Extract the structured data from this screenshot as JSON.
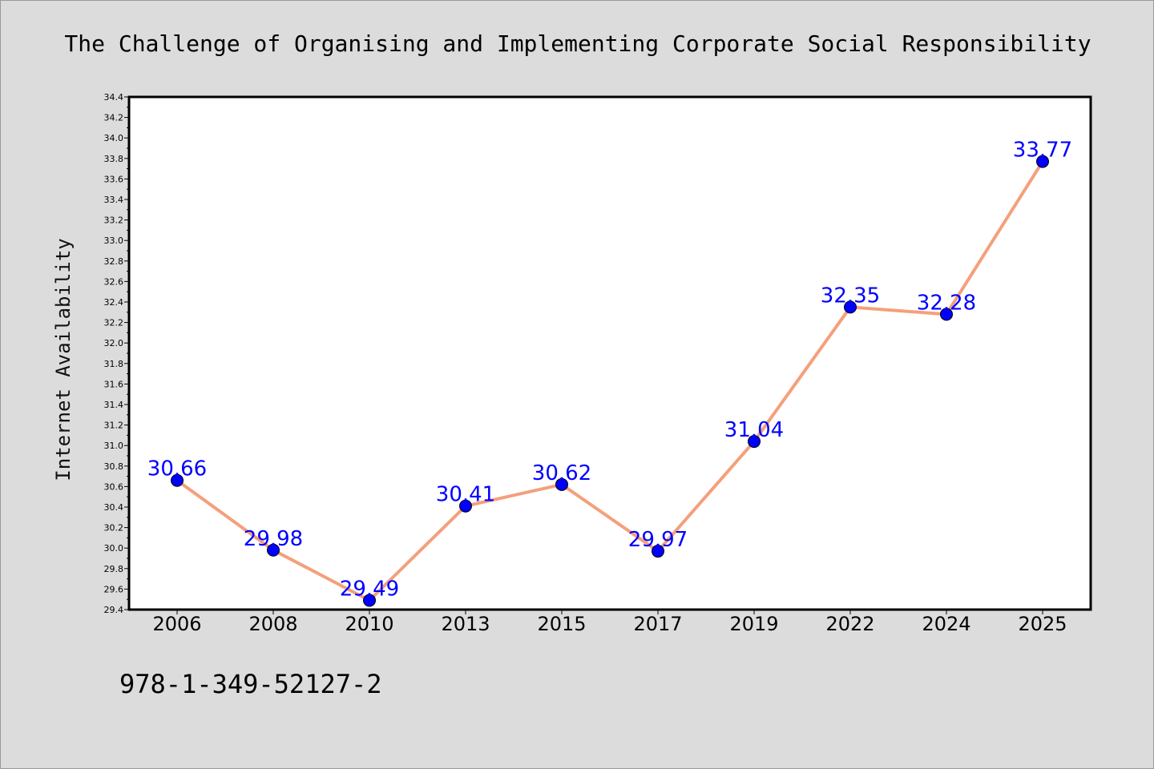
{
  "chart_data": {
    "type": "line",
    "title": "The Challenge of Organising and Implementing Corporate Social Responsibility",
    "xlabel": "",
    "ylabel": "Internet Availability",
    "categories": [
      "2006",
      "2008",
      "2010",
      "2013",
      "2015",
      "2017",
      "2019",
      "2022",
      "2024",
      "2025"
    ],
    "series": [
      {
        "values": [
          30.66,
          29.98,
          29.49,
          30.41,
          30.62,
          29.97,
          31.04,
          32.35,
          32.28,
          33.77
        ]
      }
    ],
    "data_labels": [
      "30.66",
      "29.98",
      "29.49",
      "30.41",
      "30.62",
      "29.97",
      "31.04",
      "32.35",
      "32.28",
      "33.77"
    ],
    "yticks": [
      "29.4",
      "29.6",
      "29.8",
      "30.0",
      "30.2",
      "30.4",
      "30.6",
      "30.8",
      "31.0",
      "31.2",
      "31.4",
      "31.6",
      "31.8",
      "32.0",
      "32.2",
      "32.4",
      "32.6",
      "32.8",
      "33.0",
      "33.2",
      "33.4",
      "33.6",
      "33.8",
      "34.0",
      "34.2",
      "34.4"
    ],
    "ylim": [
      29.4,
      34.4
    ],
    "grid": false,
    "legend": "none"
  },
  "footer": {
    "isbn": "978-1-349-52127-2"
  },
  "colors": {
    "background": "#dcdcdc",
    "plot_background": "#ffffff",
    "line": "#f4a07c",
    "marker": "#0000ff",
    "data_label": "#0000ff"
  }
}
